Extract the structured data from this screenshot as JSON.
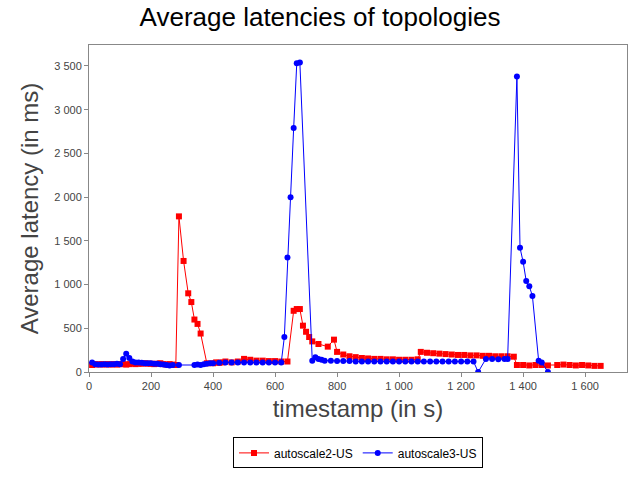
{
  "chart_data": {
    "type": "line",
    "title": "Average latencies of topologies",
    "x_label": "timestamp (in s)",
    "y_label": "Average latency (in ms)",
    "xlim": [
      0,
      1735
    ],
    "ylim": [
      0,
      3740
    ],
    "xticks": [
      0,
      200,
      400,
      600,
      800,
      {
        "value": 1000,
        "label": "1 000"
      },
      {
        "value": 1200,
        "label": "1 200"
      },
      {
        "value": 1400,
        "label": "1 400"
      },
      {
        "value": 1600,
        "label": "1 600"
      }
    ],
    "yticks": [
      0,
      500,
      {
        "value": 1000,
        "label": "1 000"
      },
      {
        "value": 1500,
        "label": "1 500"
      },
      {
        "value": 2000,
        "label": "2 000"
      },
      {
        "value": 2500,
        "label": "2 500"
      },
      {
        "value": 3000,
        "label": "3 000"
      },
      {
        "value": 3500,
        "label": "3 500"
      }
    ],
    "grid": false,
    "legend": "bottom",
    "series": [
      {
        "name": "autoscale2-US",
        "color": "#ff0000",
        "marker": "square",
        "line_style": "solid",
        "x": [
          10,
          20,
          30,
          40,
          50,
          60,
          70,
          80,
          90,
          100,
          110,
          120,
          130,
          140,
          150,
          160,
          170,
          180,
          190,
          200,
          210,
          220,
          230,
          240,
          250,
          260,
          270,
          280,
          290,
          305,
          320,
          330,
          340,
          350,
          360,
          380,
          400,
          410,
          420,
          430,
          440,
          460,
          480,
          500,
          520,
          540,
          560,
          580,
          600,
          620,
          640,
          660,
          670,
          680,
          690,
          700,
          710,
          720,
          740,
          770,
          790,
          800,
          820,
          840,
          860,
          880,
          900,
          920,
          940,
          960,
          980,
          1000,
          1020,
          1040,
          1060,
          1070,
          1090,
          1110,
          1130,
          1150,
          1170,
          1190,
          1210,
          1230,
          1250,
          1270,
          1290,
          1310,
          1330,
          1350,
          1370,
          1380,
          1400,
          1420,
          1440,
          1460,
          1480,
          1510,
          1530,
          1550,
          1570,
          1590,
          1610,
          1630,
          1650
        ],
        "values": [
          80,
          90,
          85,
          90,
          85,
          90,
          85,
          90,
          85,
          90,
          90,
          85,
          90,
          95,
          90,
          95,
          95,
          100,
          95,
          95,
          90,
          95,
          100,
          90,
          85,
          90,
          85,
          80,
          1780,
          1270,
          900,
          800,
          600,
          550,
          440,
          100,
          100,
          110,
          105,
          110,
          120,
          110,
          120,
          150,
          140,
          130,
          130,
          125,
          125,
          120,
          120,
          700,
          720,
          720,
          530,
          460,
          400,
          350,
          320,
          290,
          370,
          230,
          200,
          180,
          170,
          160,
          155,
          150,
          150,
          145,
          145,
          140,
          140,
          140,
          145,
          230,
          220,
          215,
          210,
          205,
          200,
          195,
          195,
          190,
          190,
          185,
          185,
          180,
          180,
          180,
          175,
          80,
          80,
          75,
          80,
          80,
          75,
          80,
          85,
          80,
          75,
          80,
          75,
          70,
          70
        ]
      },
      {
        "name": "autoscale3-US",
        "color": "#0000ff",
        "marker": "circle",
        "line_style": "solid",
        "x": [
          10,
          20,
          30,
          40,
          50,
          60,
          70,
          80,
          90,
          100,
          110,
          120,
          130,
          140,
          150,
          160,
          170,
          180,
          190,
          200,
          210,
          220,
          230,
          240,
          250,
          260,
          270,
          290,
          340,
          350,
          360,
          370,
          380,
          390,
          400,
          420,
          440,
          460,
          480,
          500,
          520,
          540,
          560,
          580,
          600,
          620,
          630,
          640,
          650,
          660,
          670,
          680,
          720,
          730,
          740,
          750,
          760,
          780,
          800,
          820,
          840,
          860,
          880,
          900,
          920,
          940,
          960,
          980,
          1000,
          1020,
          1040,
          1060,
          1080,
          1100,
          1120,
          1140,
          1160,
          1180,
          1200,
          1220,
          1240,
          1255,
          1280,
          1300,
          1320,
          1340,
          1350,
          1380,
          1390,
          1400,
          1410,
          1420,
          1430,
          1450,
          1460,
          1480
        ],
        "values": [
          110,
          90,
          85,
          85,
          90,
          85,
          90,
          90,
          95,
          90,
          150,
          210,
          160,
          120,
          110,
          110,
          105,
          100,
          100,
          100,
          95,
          95,
          90,
          85,
          80,
          75,
          80,
          80,
          80,
          85,
          80,
          90,
          95,
          100,
          100,
          105,
          110,
          110,
          110,
          110,
          110,
          110,
          110,
          110,
          110,
          110,
          400,
          1310,
          2000,
          2790,
          3530,
          3540,
          130,
          170,
          150,
          140,
          130,
          130,
          125,
          125,
          125,
          120,
          120,
          120,
          120,
          120,
          120,
          120,
          120,
          120,
          120,
          120,
          120,
          120,
          120,
          120,
          120,
          120,
          120,
          120,
          120,
          0,
          150,
          150,
          145,
          150,
          150,
          3380,
          1420,
          1260,
          1040,
          980,
          870,
          130,
          110,
          0
        ]
      }
    ]
  }
}
